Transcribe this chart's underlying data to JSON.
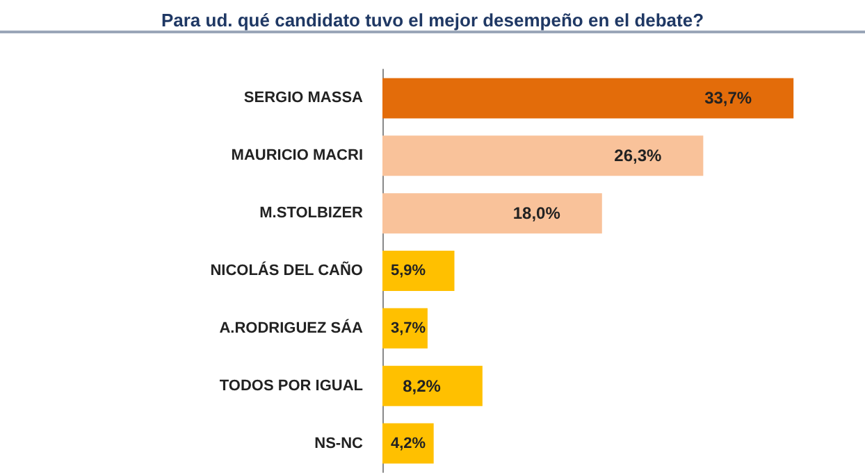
{
  "chart_data": {
    "type": "bar",
    "orientation": "horizontal",
    "title": "Para ud. qué candidato tuvo el mejor desempeño en el debate?",
    "categories": [
      "SERGIO MASSA",
      "MAURICIO MACRI",
      "M.STOLBIZER",
      "NICOLÁS DEL CAÑO",
      "A.RODRIGUEZ SÁA",
      "TODOS POR IGUAL",
      "NS-NC"
    ],
    "values": [
      33.7,
      26.3,
      18.0,
      5.9,
      3.7,
      8.2,
      4.2
    ],
    "colors": [
      "#e36c0a",
      "#f9c29a",
      "#f9c29a",
      "#ffc000",
      "#ffc000",
      "#ffc000",
      "#ffc000"
    ],
    "value_labels": [
      "33,7%",
      "26,3%",
      "18,0%",
      "5,9%",
      "3,7%",
      "8,2%",
      "4,2%"
    ]
  }
}
